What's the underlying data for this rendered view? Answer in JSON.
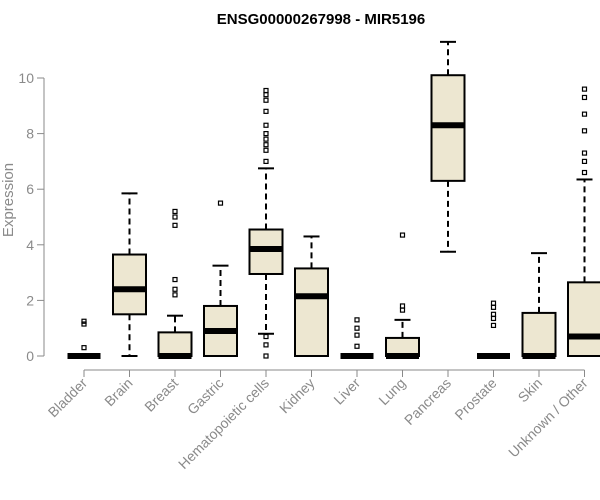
{
  "chart_data": {
    "type": "boxplot",
    "title": "ENSG00000267998 - MIR5196",
    "ylabel": "Expression",
    "xlabel": "",
    "ylim": [
      0,
      11.5
    ],
    "yticks": [
      0,
      2,
      4,
      6,
      8,
      10
    ],
    "grid": false,
    "legend": "none",
    "colors": {
      "box_fill": "#ede7d1",
      "box_stroke": "#000000",
      "text": "#8a8a8a"
    },
    "categories": [
      "Bladder",
      "Brain",
      "Breast",
      "Gastric",
      "Hematopoietic cells",
      "Kidney",
      "Liver",
      "Lung",
      "Pancreas",
      "Prostate",
      "Skin",
      "Unknown / Other"
    ],
    "boxes": [
      {
        "q1": 0,
        "median": 0,
        "q3": 0,
        "whisker_low": 0,
        "whisker_high": 0,
        "outliers": [
          0.3,
          1.15,
          1.25
        ]
      },
      {
        "q1": 1.5,
        "median": 2.4,
        "q3": 3.65,
        "whisker_low": 0,
        "whisker_high": 5.85,
        "outliers": []
      },
      {
        "q1": 0,
        "median": 0,
        "q3": 0.85,
        "whisker_low": 0,
        "whisker_high": 1.45,
        "outliers": [
          2.2,
          2.4,
          2.75,
          4.7,
          5.0,
          5.2
        ]
      },
      {
        "q1": 0,
        "median": 0.9,
        "q3": 1.8,
        "whisker_low": 0,
        "whisker_high": 3.25,
        "outliers": [
          5.5
        ]
      },
      {
        "q1": 2.95,
        "median": 3.85,
        "q3": 4.55,
        "whisker_low": 0.8,
        "whisker_high": 6.75,
        "outliers": [
          0,
          0.4,
          0.7,
          7.0,
          7.4,
          7.6,
          7.8,
          8.0,
          8.3,
          8.8,
          9.2,
          9.4,
          9.55
        ]
      },
      {
        "q1": 0,
        "median": 2.15,
        "q3": 3.15,
        "whisker_low": 0,
        "whisker_high": 4.3,
        "outliers": []
      },
      {
        "q1": 0,
        "median": 0,
        "q3": 0,
        "whisker_low": 0,
        "whisker_high": 0,
        "outliers": [
          0.35,
          0.75,
          1.0,
          1.3
        ]
      },
      {
        "q1": 0,
        "median": 0,
        "q3": 0.65,
        "whisker_low": 0,
        "whisker_high": 1.3,
        "outliers": [
          1.65,
          1.8,
          4.35
        ]
      },
      {
        "q1": 6.3,
        "median": 8.3,
        "q3": 10.1,
        "whisker_low": 3.75,
        "whisker_high": 11.3,
        "outliers": []
      },
      {
        "q1": 0,
        "median": 0,
        "q3": 0,
        "whisker_low": 0,
        "whisker_high": 0,
        "outliers": [
          1.1,
          1.35,
          1.5,
          1.75,
          1.9
        ]
      },
      {
        "q1": 0,
        "median": 0,
        "q3": 1.55,
        "whisker_low": 0,
        "whisker_high": 3.7,
        "outliers": []
      },
      {
        "q1": 0,
        "median": 0.7,
        "q3": 2.65,
        "whisker_low": 0,
        "whisker_high": 6.35,
        "outliers": [
          6.6,
          7.0,
          7.3,
          8.1,
          8.7,
          9.3,
          9.6
        ]
      }
    ]
  }
}
